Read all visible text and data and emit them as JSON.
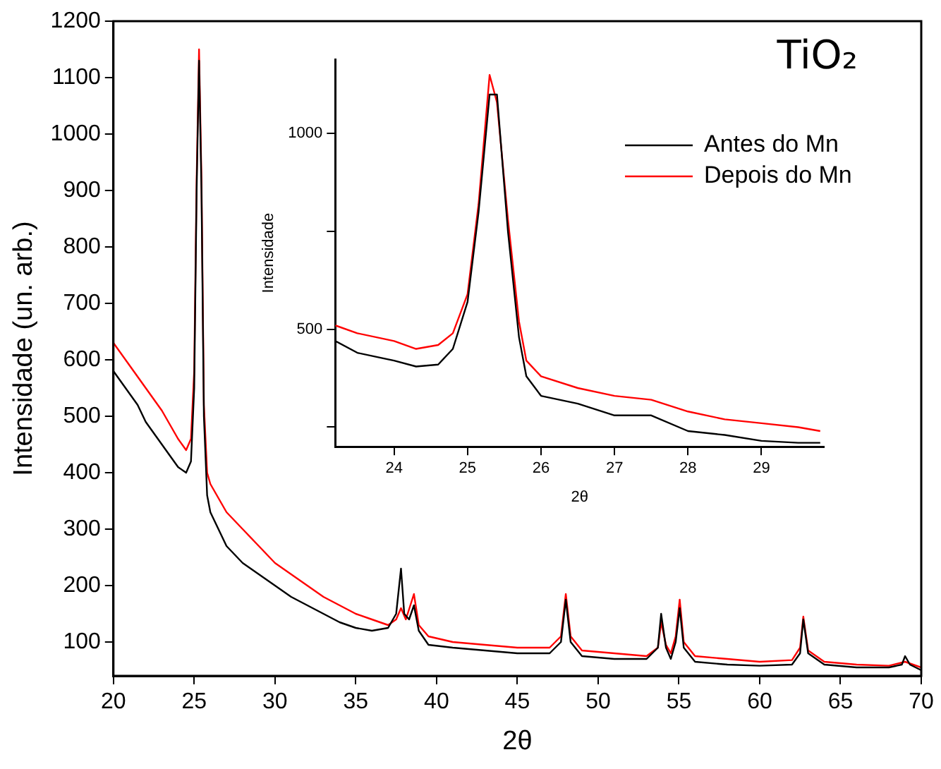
{
  "chart_data": [
    {
      "type": "line",
      "xlabel": "2θ",
      "ylabel": "Intensidade (un. arb.)",
      "xlim": [
        20,
        70
      ],
      "xticks": [
        20,
        25,
        30,
        35,
        40,
        45,
        50,
        55,
        60,
        65,
        70
      ],
      "ylim": [
        40,
        1200
      ],
      "yticks": [
        100,
        200,
        300,
        400,
        500,
        600,
        700,
        800,
        900,
        1000,
        1100,
        1200
      ],
      "annotations": [
        "TiO₂"
      ],
      "legend": "top right",
      "marker": "none",
      "series": [
        {
          "name": "Antes do Mn",
          "color": "#000000",
          "x": [
            20,
            20.5,
            21,
            21.5,
            22,
            22.5,
            23,
            23.5,
            24,
            24.5,
            24.8,
            25,
            25.15,
            25.3,
            25.45,
            25.6,
            25.8,
            26,
            26.5,
            27,
            28,
            29,
            30,
            31,
            32,
            33,
            34,
            35,
            36,
            37,
            37.5,
            37.8,
            38,
            38.3,
            38.6,
            38.9,
            39.5,
            41,
            43,
            45,
            47,
            47.7,
            48,
            48.3,
            49,
            51,
            53,
            53.7,
            53.9,
            54.2,
            54.5,
            54.8,
            55.05,
            55.3,
            56,
            58,
            60,
            62,
            62.5,
            62.7,
            63,
            64,
            66,
            68,
            68.8,
            69,
            69.3,
            70
          ],
          "values": [
            580,
            560,
            540,
            520,
            490,
            470,
            450,
            430,
            410,
            400,
            420,
            550,
            900,
            1130,
            900,
            500,
            360,
            330,
            300,
            270,
            240,
            220,
            200,
            180,
            165,
            150,
            135,
            125,
            120,
            125,
            150,
            230,
            150,
            140,
            165,
            120,
            95,
            90,
            85,
            80,
            80,
            100,
            175,
            100,
            75,
            70,
            70,
            90,
            150,
            90,
            70,
            100,
            160,
            90,
            65,
            60,
            58,
            60,
            80,
            140,
            80,
            60,
            55,
            55,
            60,
            75,
            60,
            50
          ]
        },
        {
          "name": "Depois do Mn",
          "color": "#ff0000",
          "x": [
            20,
            21,
            22,
            23,
            24,
            24.5,
            24.8,
            25,
            25.15,
            25.3,
            25.45,
            25.6,
            25.8,
            26,
            27,
            28,
            29,
            30,
            31,
            32,
            33,
            34,
            35,
            36,
            37,
            37.5,
            37.8,
            38.1,
            38.6,
            38.9,
            39.5,
            41,
            43,
            45,
            47,
            47.7,
            48,
            48.3,
            49,
            51,
            53,
            53.7,
            53.9,
            54.2,
            54.5,
            54.8,
            55.05,
            55.3,
            56,
            58,
            60,
            62,
            62.5,
            62.7,
            63,
            64,
            66,
            68,
            69,
            70
          ],
          "values": [
            630,
            590,
            550,
            510,
            460,
            440,
            460,
            580,
            920,
            1150,
            920,
            520,
            400,
            380,
            330,
            300,
            270,
            240,
            220,
            200,
            180,
            165,
            150,
            140,
            130,
            140,
            160,
            140,
            185,
            130,
            110,
            100,
            95,
            90,
            90,
            110,
            185,
            110,
            85,
            80,
            75,
            90,
            135,
            95,
            80,
            110,
            175,
            100,
            75,
            70,
            65,
            68,
            90,
            145,
            85,
            65,
            60,
            58,
            65,
            55
          ]
        }
      ]
    },
    {
      "type": "line",
      "xlabel": "2θ",
      "ylabel": "Intensidade",
      "xlim": [
        23.2,
        29.85
      ],
      "xticks": [
        24,
        25,
        26,
        27,
        28,
        29
      ],
      "ylim": [
        200,
        1190
      ],
      "yticks": [
        {
          "value": 250,
          "label": null
        },
        500,
        {
          "value": 750,
          "label": null
        },
        1000
      ],
      "marker": "none",
      "series": [
        {
          "color": "#000000",
          "x": [
            23.2,
            23.5,
            24,
            24.3,
            24.6,
            24.8,
            25,
            25.15,
            25.3,
            25.4,
            25.55,
            25.7,
            25.8,
            26,
            26.5,
            27,
            27.5,
            28,
            28.5,
            29,
            29.5,
            29.8
          ],
          "values": [
            470,
            440,
            420,
            405,
            410,
            450,
            570,
            800,
            1100,
            1100,
            750,
            480,
            380,
            330,
            310,
            280,
            280,
            240,
            230,
            215,
            210,
            210
          ]
        },
        {
          "color": "#ff0000",
          "x": [
            23.2,
            23.5,
            24,
            24.3,
            24.6,
            24.8,
            25,
            25.15,
            25.3,
            25.4,
            25.55,
            25.7,
            25.8,
            26,
            26.5,
            27,
            27.5,
            28,
            28.5,
            29,
            29.5,
            29.8
          ],
          "values": [
            510,
            490,
            470,
            450,
            460,
            490,
            590,
            820,
            1150,
            1080,
            780,
            520,
            420,
            380,
            350,
            330,
            320,
            290,
            270,
            260,
            250,
            240
          ]
        }
      ]
    }
  ]
}
